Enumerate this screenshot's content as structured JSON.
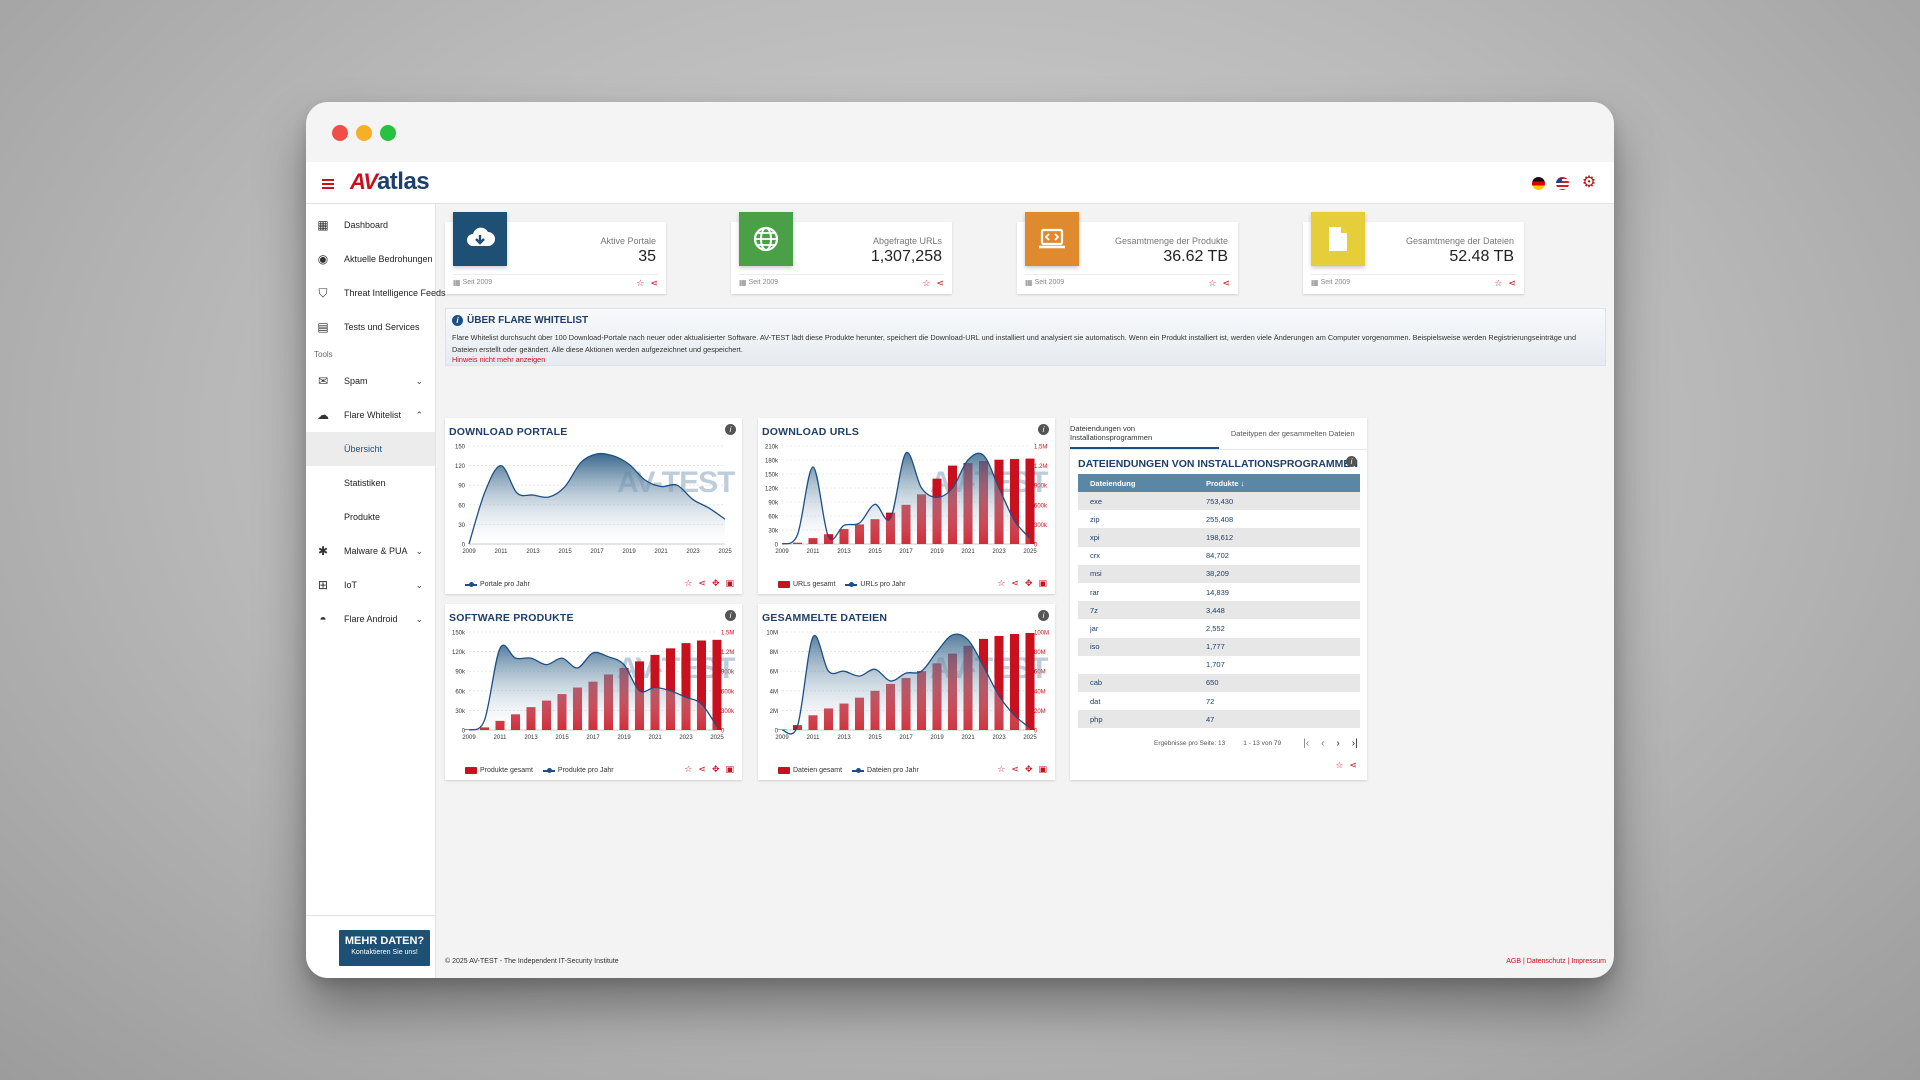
{
  "header": {
    "logo_av": "AV",
    "logo_atlas": "atlas"
  },
  "sidebar": {
    "items": [
      {
        "label": "Dashboard",
        "icon": "dashboard-icon"
      },
      {
        "label": "Aktuelle Bedrohungen",
        "icon": "fingerprint-icon"
      },
      {
        "label": "Threat Intelligence Feeds",
        "icon": "shield-icon"
      },
      {
        "label": "Tests und Services",
        "icon": "clipboard-icon"
      }
    ],
    "section": "Tools",
    "tools": [
      {
        "label": "Spam",
        "icon": "mail-icon"
      },
      {
        "label": "Flare Whitelist",
        "icon": "cloud-download-icon"
      }
    ],
    "whitelist_sub": [
      "Übersicht",
      "Statistiken",
      "Produkte"
    ],
    "tools2": [
      {
        "label": "Malware & PUA",
        "icon": "bug-icon"
      },
      {
        "label": "IoT",
        "icon": "network-icon"
      },
      {
        "label": "Flare Android",
        "icon": "android-icon"
      }
    ],
    "more_data": {
      "title": "MEHR DATEN?",
      "subtitle": "Kontaktieren Sie uns!"
    }
  },
  "stats": [
    {
      "label": "Aktive Portale",
      "value": "35",
      "since": "Seit 2009",
      "color": "#1e4f74",
      "icon": "cloud-download-icon"
    },
    {
      "label": "Abgefragte URLs",
      "value": "1,307,258",
      "since": "Seit 2009",
      "color": "#4aa046",
      "icon": "globe-icon"
    },
    {
      "label": "Gesamtmenge der Produkte",
      "value": "36.62 TB",
      "since": "Seit 2009",
      "color": "#e08a30",
      "icon": "laptop-code-icon"
    },
    {
      "label": "Gesamtmenge der Dateien",
      "value": "52.48 TB",
      "since": "Seit 2009",
      "color": "#e6cd3a",
      "icon": "file-icon"
    }
  ],
  "info": {
    "title": "ÜBER FLARE WHITELIST",
    "text": "Flare Whitelist durchsucht über 100 Download-Portale nach neuer oder aktualisierter Software. AV-TEST lädt diese Produkte herunter, speichert die Download-URL und installiert und analysiert sie automatisch. Wenn ein Produkt installiert ist, werden viele Änderungen am Computer vorgenommen. Beispielsweise werden Registrierungseinträge und Dateien erstellt oder geändert. Alle diese Aktionen werden aufgezeichnet und gespeichert.",
    "link": "Hinweis nicht mehr anzeigen"
  },
  "watermark": "AV-TEST",
  "chart_data": [
    {
      "type": "area",
      "title": "DOWNLOAD PORTALE",
      "x": [
        2009,
        2010,
        2011,
        2012,
        2013,
        2014,
        2015,
        2016,
        2017,
        2018,
        2019,
        2020,
        2021,
        2022,
        2023,
        2024,
        2025
      ],
      "series": [
        {
          "name": "Portale pro Jahr",
          "values": [
            0,
            80,
            120,
            78,
            75,
            72,
            88,
            125,
            138,
            135,
            122,
            98,
            88,
            90,
            68,
            55,
            38
          ]
        }
      ],
      "ylim": [
        0,
        150
      ],
      "yticks": [
        0,
        30,
        60,
        90,
        120,
        150
      ],
      "xticks": [
        2009,
        2011,
        2013,
        2015,
        2017,
        2019,
        2021,
        2023,
        2025
      ]
    },
    {
      "type": "bar+line",
      "title": "DOWNLOAD URLS",
      "x": [
        2009,
        2010,
        2011,
        2012,
        2013,
        2014,
        2015,
        2016,
        2017,
        2018,
        2019,
        2020,
        2021,
        2022,
        2023,
        2024,
        2025
      ],
      "series": [
        {
          "name": "URLs gesamt",
          "axis": "right",
          "values": [
            0,
            20000,
            90000,
            150000,
            230000,
            300000,
            380000,
            480000,
            600000,
            760000,
            1000000,
            1200000,
            1240000,
            1270000,
            1290000,
            1300000,
            1307258
          ]
        },
        {
          "name": "URLs pro Jahr",
          "axis": "left",
          "values": [
            0,
            20000,
            165000,
            15000,
            40000,
            45000,
            85000,
            55000,
            195000,
            120000,
            100000,
            120000,
            180000,
            190000,
            120000,
            50000,
            12000
          ]
        }
      ],
      "ylim_left": [
        0,
        210000
      ],
      "yticks_left": [
        "0",
        "30k",
        "60k",
        "90k",
        "120k",
        "150k",
        "180k",
        "210k"
      ],
      "ylim_right": [
        0,
        1500000
      ],
      "yticks_right": [
        "0",
        "300k",
        "600k",
        "900k",
        "1.2M",
        "1.5M"
      ],
      "xticks": [
        2009,
        2011,
        2013,
        2015,
        2017,
        2019,
        2021,
        2023,
        2025
      ]
    },
    {
      "type": "bar+line",
      "title": "SOFTWARE PRODUKTE",
      "x": [
        2009,
        2010,
        2011,
        2012,
        2013,
        2014,
        2015,
        2016,
        2017,
        2018,
        2019,
        2020,
        2021,
        2022,
        2023,
        2024,
        2025
      ],
      "series": [
        {
          "name": "Produkte gesamt",
          "axis": "right",
          "values": [
            10000,
            40000,
            140000,
            240000,
            350000,
            450000,
            550000,
            650000,
            740000,
            850000,
            950000,
            1050000,
            1150000,
            1250000,
            1330000,
            1370000,
            1380000
          ]
        },
        {
          "name": "Produkte pro Jahr",
          "axis": "left",
          "values": [
            0,
            15000,
            125000,
            110000,
            110000,
            100000,
            110000,
            95000,
            118000,
            112000,
            100000,
            60000,
            65000,
            60000,
            50000,
            40000,
            5000
          ]
        }
      ],
      "ylim_left": [
        0,
        150000
      ],
      "yticks_left": [
        "0",
        "30k",
        "60k",
        "90k",
        "120k",
        "150k"
      ],
      "ylim_right": [
        0,
        1500000
      ],
      "yticks_right": [
        "0",
        "300k",
        "600k",
        "900k",
        "1.2M",
        "1.5M"
      ],
      "xticks": [
        2009,
        2011,
        2013,
        2015,
        2017,
        2019,
        2021,
        2023,
        2025
      ]
    },
    {
      "type": "bar+line",
      "title": "GESAMMELTE DATEIEN",
      "x": [
        2009,
        2010,
        2011,
        2012,
        2013,
        2014,
        2015,
        2016,
        2017,
        2018,
        2019,
        2020,
        2021,
        2022,
        2023,
        2024,
        2025
      ],
      "series": [
        {
          "name": "Dateien gesamt",
          "axis": "right",
          "values": [
            500000,
            5000000,
            15000000,
            22000000,
            27000000,
            33000000,
            40000000,
            47000000,
            53000000,
            60000000,
            68000000,
            78000000,
            86000000,
            93000000,
            96000000,
            98000000,
            99000000
          ]
        },
        {
          "name": "Dateien pro Jahr",
          "axis": "left",
          "values": [
            0,
            400000,
            9500000,
            6000000,
            6000000,
            5500000,
            6200000,
            5000000,
            5800000,
            6000000,
            8000000,
            9700000,
            9200000,
            6500000,
            3500000,
            1500000,
            200000
          ]
        }
      ],
      "ylim_left": [
        0,
        10000000
      ],
      "yticks_left": [
        "0",
        "2M",
        "4M",
        "6M",
        "8M",
        "10M"
      ],
      "ylim_right": [
        0,
        100000000
      ],
      "yticks_right": [
        "0",
        "20M",
        "40M",
        "60M",
        "80M",
        "100M"
      ],
      "xticks": [
        2009,
        2011,
        2013,
        2015,
        2017,
        2019,
        2021,
        2023,
        2025
      ]
    }
  ],
  "table": {
    "tabs": [
      "Dateiendungen von Installationsprogrammen",
      "Dateitypen der gesammelten Dateien"
    ],
    "title": "DATEIENDUNGEN VON INSTALLATIONSPROGRAMMEN",
    "columns": [
      "Dateiendung",
      "Produkte"
    ],
    "rows": [
      [
        "exe",
        "753,430"
      ],
      [
        "zip",
        "255,408"
      ],
      [
        "xpi",
        "198,612"
      ],
      [
        "crx",
        "84,702"
      ],
      [
        "msi",
        "38,209"
      ],
      [
        "rar",
        "14,839"
      ],
      [
        "7z",
        "3,448"
      ],
      [
        "jar",
        "2,552"
      ],
      [
        "iso",
        "1,777"
      ],
      [
        "",
        "1,707"
      ],
      [
        "cab",
        "650"
      ],
      [
        "dat",
        "72"
      ],
      [
        "php",
        "47"
      ]
    ],
    "per_page_label": "Ergebnisse pro Seite: 13",
    "range_label": "1 - 13 von 79"
  },
  "footer": {
    "copyright": "© 2025 AV-TEST - The Independent IT-Security Institute",
    "agb": "AGB",
    "datenschutz": "Datenschutz",
    "impressum": "Impressum"
  },
  "colors": {
    "brand_red": "#c8101e",
    "brand_blue": "#1d3f6a",
    "line_blue": "#1d4f85"
  }
}
